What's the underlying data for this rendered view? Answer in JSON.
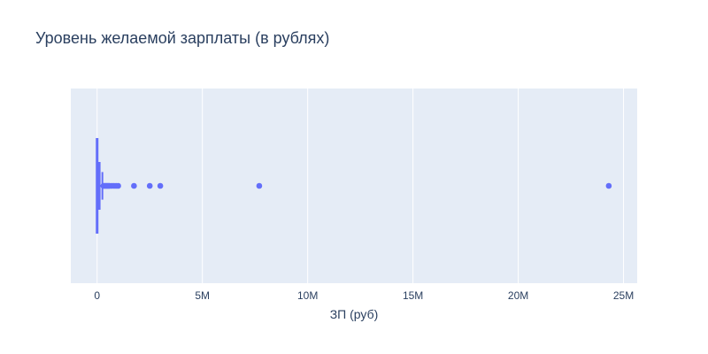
{
  "chart_data": {
    "type": "box",
    "orientation": "horizontal",
    "title": "Уровень желаемой зарплаты (в рублях)",
    "xlabel": "ЗП (руб)",
    "ylabel": "",
    "xlim": [
      -1250000,
      25650000
    ],
    "x_ticks": [
      0,
      5000000,
      10000000,
      15000000,
      20000000,
      25000000
    ],
    "x_tick_labels": [
      "0",
      "5M",
      "10M",
      "15M",
      "20M",
      "25M"
    ],
    "grid": true,
    "series": [
      {
        "color": "#636efa",
        "min": 0,
        "q1": 25000,
        "median": 60000,
        "q3": 120000,
        "max": 250000,
        "outliers": [
          300000,
          350000,
          400000,
          450000,
          500000,
          550000,
          600000,
          700000,
          800000,
          900000,
          1000000,
          1750000,
          2500000,
          3000000,
          7700000,
          24300000
        ]
      }
    ]
  }
}
